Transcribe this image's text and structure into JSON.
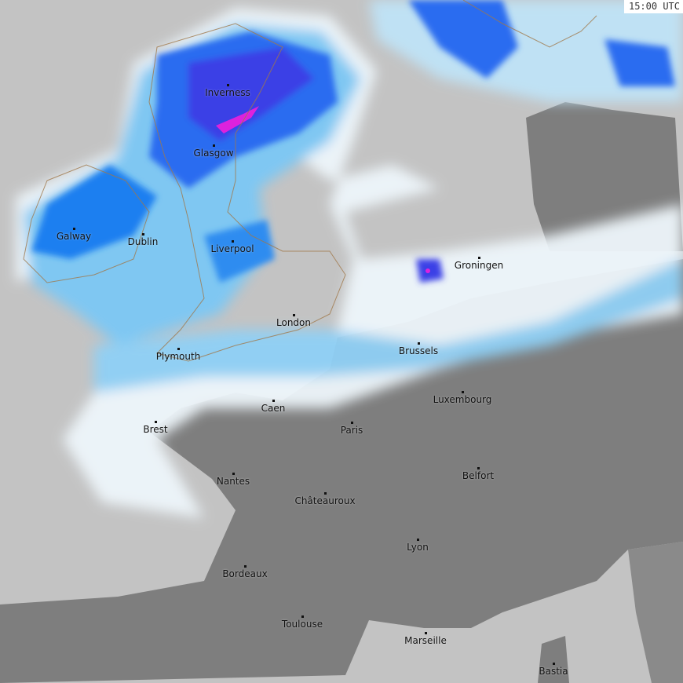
{
  "timestamp": "15:00 UTC",
  "colors": {
    "sea": "#c3c3c3",
    "land": "#7e7e7e",
    "precip_light": "#e6f4ff",
    "precip_moderate": "#33aaff",
    "precip_heavy": "#2244ee",
    "precip_intense": "#dd22dd",
    "coastline": "#a0784a"
  },
  "cities": [
    {
      "name": "Inverness"
    },
    {
      "name": "Glasgow"
    },
    {
      "name": "Galway"
    },
    {
      "name": "Dublin"
    },
    {
      "name": "Liverpool"
    },
    {
      "name": "London"
    },
    {
      "name": "Plymouth"
    },
    {
      "name": "Groningen"
    },
    {
      "name": "Brussels"
    },
    {
      "name": "Luxembourg"
    },
    {
      "name": "Caen"
    },
    {
      "name": "Paris"
    },
    {
      "name": "Brest"
    },
    {
      "name": "Belfort"
    },
    {
      "name": "Nantes"
    },
    {
      "name": "Châteauroux"
    },
    {
      "name": "Lyon"
    },
    {
      "name": "Bordeaux"
    },
    {
      "name": "Toulouse"
    },
    {
      "name": "Marseille"
    },
    {
      "name": "Bastia"
    }
  ]
}
